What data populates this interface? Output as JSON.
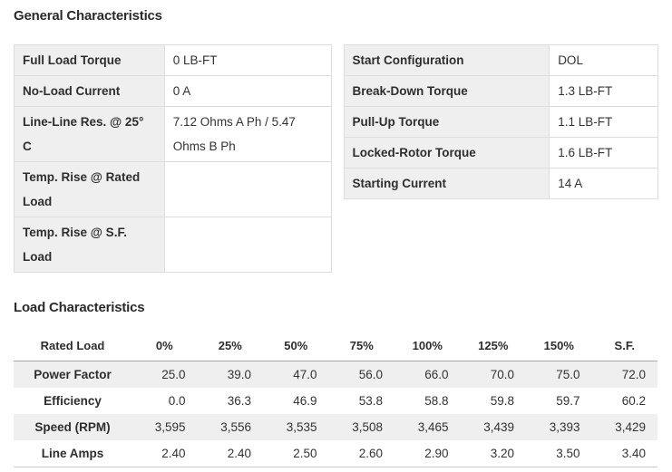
{
  "general": {
    "title": "General Characteristics",
    "left_rows": [
      {
        "label": "Full Load Torque",
        "value": "0 LB-FT"
      },
      {
        "label": "No-Load Current",
        "value": "0 A"
      },
      {
        "label": "Line-Line Res. @ 25°\nC",
        "value": "7.12 Ohms A Ph / 5.47\nOhms B Ph"
      },
      {
        "label": "Temp. Rise @ Rated\nLoad",
        "value": ""
      },
      {
        "label": "Temp. Rise @ S.F.\nLoad",
        "value": ""
      }
    ],
    "right_rows": [
      {
        "label": "Start Configuration",
        "value": "DOL"
      },
      {
        "label": "Break-Down Torque",
        "value": "1.3 LB-FT"
      },
      {
        "label": "Pull-Up Torque",
        "value": "1.1 LB-FT"
      },
      {
        "label": "Locked-Rotor Torque",
        "value": "1.6 LB-FT"
      },
      {
        "label": "Starting Current",
        "value": "14 A"
      }
    ]
  },
  "load": {
    "title": "Load Characteristics",
    "columns": [
      "Rated Load",
      "0%",
      "25%",
      "50%",
      "75%",
      "100%",
      "125%",
      "150%",
      "S.F."
    ],
    "rows": [
      {
        "label": "Power Factor",
        "values": [
          "25.0",
          "39.0",
          "47.0",
          "56.0",
          "66.0",
          "70.0",
          "75.0",
          "72.0"
        ]
      },
      {
        "label": "Efficiency",
        "values": [
          "0.0",
          "36.3",
          "46.9",
          "53.8",
          "58.8",
          "59.8",
          "59.7",
          "60.2"
        ]
      },
      {
        "label": "Speed (RPM)",
        "values": [
          "3,595",
          "3,556",
          "3,535",
          "3,508",
          "3,465",
          "3,439",
          "3,393",
          "3,429"
        ]
      },
      {
        "label": "Line Amps",
        "values": [
          "2.40",
          "2.40",
          "2.50",
          "2.60",
          "2.90",
          "3.20",
          "3.50",
          "3.40"
        ]
      }
    ]
  },
  "colors": {
    "label_cell_bg": "#efefef",
    "stripe_bg": "#efefef",
    "cell_border": "#dddddd",
    "header_underline": "#a9a9a9",
    "text": "#333333"
  }
}
